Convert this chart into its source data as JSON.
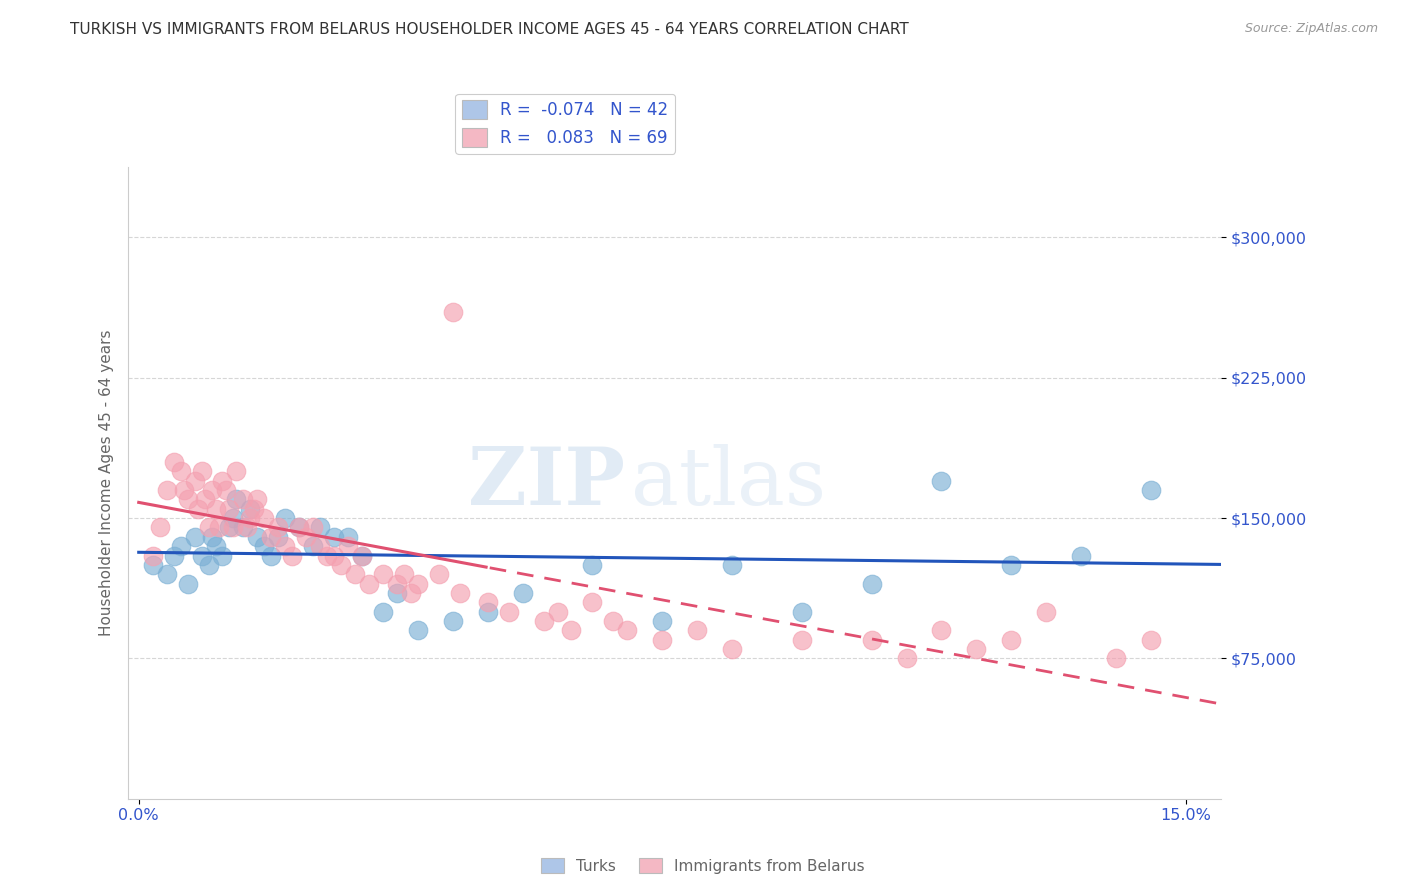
{
  "title": "TURKISH VS IMMIGRANTS FROM BELARUS HOUSEHOLDER INCOME AGES 45 - 64 YEARS CORRELATION CHART",
  "source": "Source: ZipAtlas.com",
  "ylabel": "Householder Income Ages 45 - 64 years",
  "xlim": [
    -0.15,
    15.5
  ],
  "ylim": [
    0,
    337500
  ],
  "yticks": [
    75000,
    150000,
    225000,
    300000
  ],
  "ytick_labels": [
    "$75,000",
    "$150,000",
    "$225,000",
    "$300,000"
  ],
  "grid_color": "#cccccc",
  "background_color": "#ffffff",
  "watermark_zip": "ZIP",
  "watermark_atlas": "atlas",
  "series": [
    {
      "name": "Turks",
      "color": "#7bafd4",
      "line_color": "#2255bb",
      "R": -0.074,
      "N": 42,
      "x": [
        0.2,
        0.4,
        0.5,
        0.6,
        0.7,
        0.8,
        0.9,
        1.0,
        1.05,
        1.1,
        1.2,
        1.3,
        1.35,
        1.4,
        1.5,
        1.6,
        1.7,
        1.8,
        1.9,
        2.0,
        2.1,
        2.3,
        2.5,
        2.6,
        2.8,
        3.0,
        3.2,
        3.5,
        3.7,
        4.0,
        4.5,
        5.0,
        5.5,
        6.5,
        7.5,
        8.5,
        9.5,
        10.5,
        11.5,
        12.5,
        13.5,
        14.5
      ],
      "y": [
        125000,
        120000,
        130000,
        135000,
        115000,
        140000,
        130000,
        125000,
        140000,
        135000,
        130000,
        145000,
        150000,
        160000,
        145000,
        155000,
        140000,
        135000,
        130000,
        140000,
        150000,
        145000,
        135000,
        145000,
        140000,
        140000,
        130000,
        100000,
        110000,
        90000,
        95000,
        100000,
        110000,
        125000,
        95000,
        125000,
        100000,
        115000,
        170000,
        125000,
        130000,
        165000
      ]
    },
    {
      "name": "Immigrants from Belarus",
      "color": "#f4a0b0",
      "line_color": "#e05070",
      "R": 0.083,
      "N": 69,
      "x": [
        0.2,
        0.3,
        0.4,
        0.5,
        0.6,
        0.65,
        0.7,
        0.8,
        0.85,
        0.9,
        0.95,
        1.0,
        1.05,
        1.1,
        1.15,
        1.2,
        1.25,
        1.3,
        1.35,
        1.4,
        1.5,
        1.55,
        1.6,
        1.65,
        1.7,
        1.8,
        1.9,
        2.0,
        2.1,
        2.2,
        2.3,
        2.4,
        2.5,
        2.6,
        2.7,
        2.8,
        2.9,
        3.0,
        3.1,
        3.2,
        3.3,
        3.5,
        3.7,
        3.9,
        4.0,
        4.3,
        4.6,
        5.0,
        5.3,
        5.8,
        6.0,
        6.2,
        6.5,
        6.8,
        7.0,
        7.5,
        8.0,
        8.5,
        9.5,
        10.5,
        11.0,
        11.5,
        12.0,
        12.5,
        13.0,
        14.0,
        14.5,
        4.5,
        3.8
      ],
      "y": [
        130000,
        145000,
        165000,
        180000,
        175000,
        165000,
        160000,
        170000,
        155000,
        175000,
        160000,
        145000,
        165000,
        155000,
        145000,
        170000,
        165000,
        155000,
        145000,
        175000,
        160000,
        145000,
        150000,
        155000,
        160000,
        150000,
        140000,
        145000,
        135000,
        130000,
        145000,
        140000,
        145000,
        135000,
        130000,
        130000,
        125000,
        135000,
        120000,
        130000,
        115000,
        120000,
        115000,
        110000,
        115000,
        120000,
        110000,
        105000,
        100000,
        95000,
        100000,
        90000,
        105000,
        95000,
        90000,
        85000,
        90000,
        80000,
        85000,
        85000,
        75000,
        90000,
        80000,
        85000,
        100000,
        75000,
        85000,
        260000,
        120000
      ]
    }
  ],
  "legend_box_colors": [
    "#aec6e8",
    "#f4b8c4"
  ],
  "legend_text_color": "#3355cc",
  "title_color": "#333333",
  "axis_label_color": "#666666",
  "tick_label_color": "#3355cc"
}
